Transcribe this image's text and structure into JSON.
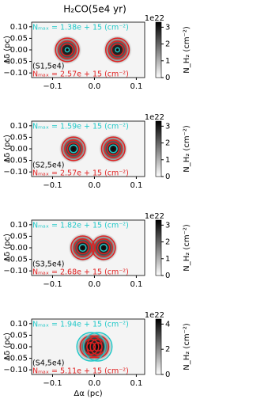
{
  "chart_data": [
    {
      "type": "image",
      "title": "H₂CO(5e4 yr)",
      "ylabel": "Δδ (pc)",
      "xlim": [
        -0.15,
        0.12
      ],
      "ylim": [
        -0.12,
        0.12
      ],
      "xticks": [
        {
          "value": -0.1,
          "label": "−0.1"
        },
        {
          "value": 0,
          "label": "0.0"
        },
        {
          "value": 0.1,
          "label": "0.1"
        }
      ],
      "yticks": [
        {
          "value": 0.1,
          "label": "0.10"
        },
        {
          "value": 0.05,
          "label": "0.05"
        },
        {
          "value": 0,
          "label": "0.00"
        },
        {
          "value": -0.05,
          "label": "−0.05"
        },
        {
          "value": -0.1,
          "label": "−0.10"
        }
      ],
      "peaks": {
        "x": [
          -0.065,
          0.055
        ],
        "y": [
          0,
          0
        ],
        "values": [
          3.2,
          3.2
        ]
      },
      "contours": [
        {
          "color": "#e02020",
          "radii": [
            0.014,
            0.021,
            0.028
          ]
        },
        {
          "color": "#20c8c8",
          "radii": [
            0.005
          ]
        }
      ],
      "annotations": [
        {
          "text": "Nₘₐₓ = 1.38e + 15 (cm⁻²)",
          "color": "#20c8c8"
        },
        {
          "text": "(S1,5e4)",
          "color": "#000000"
        },
        {
          "text": "Nₘₐₓ = 2.57e + 15 (cm⁻²)",
          "color": "#e02020"
        }
      ],
      "colorbar": {
        "label": "N_H₂ (cm⁻²)",
        "offset": "1e22",
        "lim": [
          0,
          3.3
        ],
        "ticks": [
          0,
          1,
          2,
          3
        ]
      }
    },
    {
      "type": "image",
      "ylabel": "Δδ (pc)",
      "xlim": [
        -0.15,
        0.12
      ],
      "ylim": [
        -0.12,
        0.12
      ],
      "xticks": [
        {
          "value": -0.1,
          "label": "−0.1"
        },
        {
          "value": 0,
          "label": "0.0"
        },
        {
          "value": 0.1,
          "label": "0.1"
        }
      ],
      "yticks": [
        {
          "value": 0.1,
          "label": "0.10"
        },
        {
          "value": 0.05,
          "label": "0.05"
        },
        {
          "value": 0,
          "label": "0.00"
        },
        {
          "value": -0.05,
          "label": "−0.05"
        },
        {
          "value": -0.1,
          "label": "−0.10"
        }
      ],
      "peaks": {
        "x": [
          -0.05,
          0.045
        ],
        "y": [
          0,
          0
        ],
        "values": [
          3.2,
          3.2
        ]
      },
      "contours": [
        {
          "color": "#e02020",
          "radii": [
            0.014,
            0.021,
            0.028
          ]
        },
        {
          "color": "#20c8c8",
          "radii": [
            0.009
          ]
        }
      ],
      "annotations": [
        {
          "text": "Nₘₐₓ = 1.59e + 15 (cm⁻²)",
          "color": "#20c8c8"
        },
        {
          "text": "(S2,5e4)",
          "color": "#000000"
        },
        {
          "text": "Nₘₐₓ = 2.57e + 15 (cm⁻²)",
          "color": "#e02020"
        }
      ],
      "colorbar": {
        "label": "N_H₂ (cm⁻²)",
        "offset": "1e22",
        "lim": [
          0,
          3.3
        ],
        "ticks": [
          0,
          1,
          2,
          3
        ]
      }
    },
    {
      "type": "image",
      "ylabel": "Δδ (pc)",
      "xlim": [
        -0.15,
        0.12
      ],
      "ylim": [
        -0.12,
        0.12
      ],
      "xticks": [
        {
          "value": -0.1,
          "label": "−0.1"
        },
        {
          "value": 0,
          "label": "0.0"
        },
        {
          "value": 0.1,
          "label": "0.1"
        }
      ],
      "yticks": [
        {
          "value": 0.1,
          "label": "0.10"
        },
        {
          "value": 0.05,
          "label": "0.05"
        },
        {
          "value": 0,
          "label": "0.00"
        },
        {
          "value": -0.05,
          "label": "−0.05"
        },
        {
          "value": -0.1,
          "label": "−0.10"
        }
      ],
      "peaks": {
        "x": [
          -0.028,
          0.022
        ],
        "y": [
          0,
          0
        ],
        "values": [
          3.2,
          3.2
        ]
      },
      "contours": [
        {
          "color": "#e02020",
          "radii": [
            0.014,
            0.021,
            0.028
          ]
        },
        {
          "color": "#20c8c8",
          "radii": [
            0.008
          ]
        }
      ],
      "annotations": [
        {
          "text": "Nₘₐₓ = 1.82e + 15 (cm⁻²)",
          "color": "#20c8c8"
        },
        {
          "text": "(S3,5e4)",
          "color": "#000000"
        },
        {
          "text": "Nₘₐₓ = 2.68e + 15 (cm⁻²)",
          "color": "#e02020"
        }
      ],
      "colorbar": {
        "label": "N_H₂ (cm⁻²)",
        "offset": "1e22",
        "lim": [
          0,
          3.3
        ],
        "ticks": [
          0,
          1,
          2,
          3
        ]
      }
    },
    {
      "type": "image",
      "ylabel": "Δδ (pc)",
      "xlabel": "Δα (pc)",
      "xlim": [
        -0.15,
        0.12
      ],
      "ylim": [
        -0.12,
        0.12
      ],
      "xticks": [
        {
          "value": -0.1,
          "label": "−0.1"
        },
        {
          "value": 0,
          "label": "0.0"
        },
        {
          "value": 0.1,
          "label": "0.1"
        }
      ],
      "yticks": [
        {
          "value": 0.1,
          "label": "0.10"
        },
        {
          "value": 0.05,
          "label": "0.05"
        },
        {
          "value": 0,
          "label": "0.00"
        },
        {
          "value": -0.05,
          "label": "−0.05"
        },
        {
          "value": -0.1,
          "label": "−0.10"
        }
      ],
      "peaks": {
        "x": [
          -0.008,
          0.008
        ],
        "y": [
          0,
          0
        ],
        "values": [
          4.3,
          4.3
        ]
      },
      "contours": [
        {
          "color": "#e02020",
          "radii": [
            0.01,
            0.018,
            0.026
          ]
        },
        {
          "color": "#20c8c8",
          "radii": [
            0.034
          ]
        }
      ],
      "annotations": [
        {
          "text": "Nₘₐₓ = 1.94e + 15 (cm⁻²)",
          "color": "#20c8c8"
        },
        {
          "text": "(S4,5e4)",
          "color": "#000000"
        },
        {
          "text": "Nₘₐₓ = 5.11e + 15 (cm⁻²)",
          "color": "#e02020"
        }
      ],
      "colorbar": {
        "label": "N_H₂ (cm⁻²)",
        "offset": "1e22",
        "lim": [
          0,
          4.4
        ],
        "ticks": [
          0,
          2,
          4
        ]
      }
    }
  ]
}
